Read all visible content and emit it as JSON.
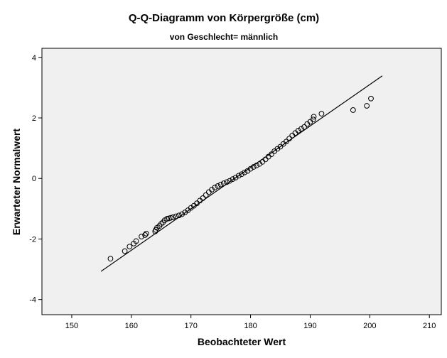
{
  "chart_data": {
    "type": "scatter",
    "title": "Q-Q-Diagramm von Körpergröße (cm)",
    "subtitle": "von Geschlecht= männlich",
    "xlabel": "Beobachteter Wert",
    "ylabel": "Erwarteter Normalwert",
    "xlim": [
      145,
      212
    ],
    "ylim": [
      -4.5,
      4.3
    ],
    "xticks": [
      150,
      160,
      170,
      180,
      190,
      200,
      210
    ],
    "yticks": [
      4,
      2,
      0,
      -2,
      -4
    ],
    "grid": false,
    "colors": {
      "plot_background": "#f0f0f0",
      "marker": "#000000",
      "line": "#000000"
    },
    "reference_line": {
      "x": [
        154.9,
        202.1
      ],
      "y": [
        -3.07,
        3.39
      ]
    },
    "points": {
      "x": [
        156.5,
        158.9,
        159.7,
        160.4,
        160.8,
        161.7,
        162.3,
        162.5,
        164.0,
        164.1,
        164.3,
        164.7,
        165.0,
        165.3,
        165.6,
        166.0,
        166.3,
        166.6,
        167.0,
        167.5,
        168.0,
        168.5,
        169.0,
        169.5,
        170.0,
        170.5,
        171.0,
        171.5,
        172.0,
        172.5,
        173.0,
        173.5,
        174.0,
        174.5,
        175.0,
        175.5,
        176.0,
        176.5,
        177.0,
        177.5,
        178.0,
        178.5,
        179.0,
        179.5,
        180.0,
        180.5,
        181.0,
        181.5,
        182.0,
        182.5,
        183.0,
        183.5,
        184.0,
        184.5,
        185.0,
        185.5,
        186.0,
        186.5,
        187.0,
        187.5,
        188.0,
        188.5,
        189.0,
        189.5,
        190.0,
        190.5,
        190.6,
        191.9,
        197.2,
        199.5,
        200.2
      ],
      "y": [
        -2.65,
        -2.4,
        -2.25,
        -2.15,
        -2.07,
        -1.92,
        -1.87,
        -1.82,
        -1.75,
        -1.7,
        -1.63,
        -1.57,
        -1.5,
        -1.45,
        -1.38,
        -1.33,
        -1.32,
        -1.3,
        -1.28,
        -1.25,
        -1.22,
        -1.18,
        -1.12,
        -1.05,
        -0.97,
        -0.9,
        -0.82,
        -0.73,
        -0.65,
        -0.55,
        -0.45,
        -0.37,
        -0.3,
        -0.25,
        -0.2,
        -0.16,
        -0.12,
        -0.08,
        -0.02,
        0.03,
        0.09,
        0.14,
        0.2,
        0.25,
        0.32,
        0.38,
        0.43,
        0.48,
        0.55,
        0.63,
        0.72,
        0.8,
        0.9,
        0.98,
        1.05,
        1.14,
        1.22,
        1.32,
        1.42,
        1.5,
        1.58,
        1.64,
        1.7,
        1.8,
        1.87,
        1.95,
        2.04,
        2.14,
        2.26,
        2.4,
        2.64
      ]
    }
  }
}
